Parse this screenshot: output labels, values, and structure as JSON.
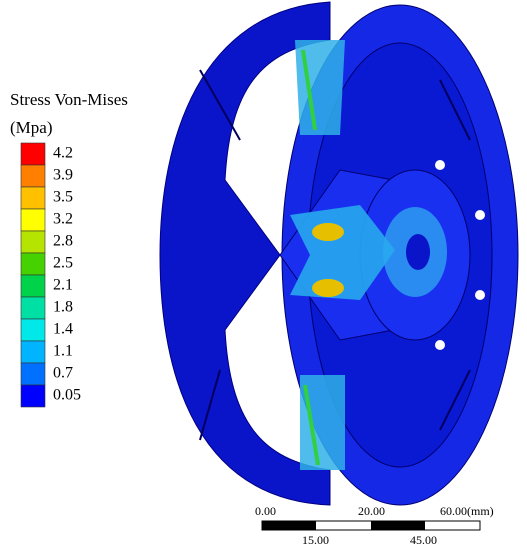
{
  "legend": {
    "title": [
      "Stress Von-Mises",
      "(Mpa)"
    ],
    "entries": [
      {
        "value": 4.2,
        "color": "#ff0000"
      },
      {
        "value": 3.9,
        "color": "#ff7f00"
      },
      {
        "value": 3.5,
        "color": "#ffc000"
      },
      {
        "value": 3.2,
        "color": "#ffff00"
      },
      {
        "value": 2.8,
        "color": "#b4e400"
      },
      {
        "value": 2.5,
        "color": "#46d200"
      },
      {
        "value": 2.1,
        "color": "#00d24a"
      },
      {
        "value": 1.8,
        "color": "#00e0a4"
      },
      {
        "value": 1.4,
        "color": "#00e8e8"
      },
      {
        "value": 1.1,
        "color": "#00b4ff"
      },
      {
        "value": 0.7,
        "color": "#0070ff"
      },
      {
        "value": 0.05,
        "color": "#0000ff"
      }
    ]
  },
  "scale_bar": {
    "top_labels": [
      "0.00",
      "20.00",
      "60.00(mm)"
    ],
    "bottom_labels": [
      "15.00",
      "45.00"
    ]
  }
}
